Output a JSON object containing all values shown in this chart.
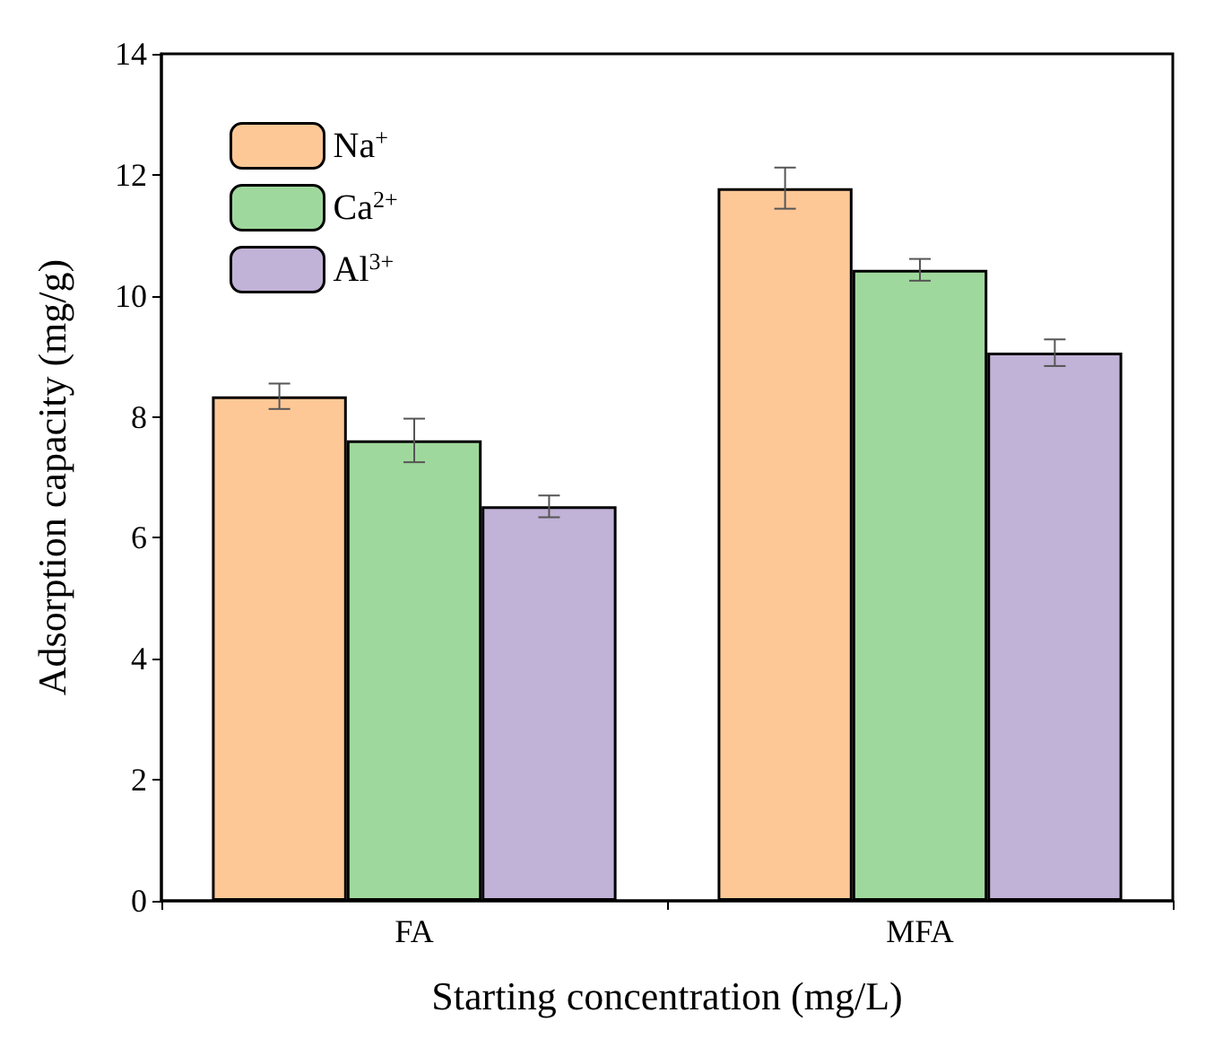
{
  "chart_data": {
    "type": "bar",
    "xlabel": "Starting concentration (mg/L)",
    "ylabel": "Adsorption capacity (mg/g)",
    "categories": [
      "FA",
      "MFA"
    ],
    "series": [
      {
        "name": "Na$^{+}$",
        "color": "#fdc896",
        "values": [
          8.34,
          11.78
        ],
        "errors": [
          0.21,
          0.34
        ]
      },
      {
        "name": "Ca$^{2+}$",
        "color": "#9fd89c",
        "values": [
          7.61,
          10.43
        ],
        "errors": [
          0.36,
          0.18
        ]
      },
      {
        "name": "Al$^{3+}$",
        "color": "#c1b2d7",
        "values": [
          6.52,
          9.06
        ],
        "errors": [
          0.18,
          0.22
        ]
      }
    ],
    "ylim": [
      0,
      14
    ],
    "yticks": [
      0,
      2,
      4,
      6,
      8,
      10,
      12,
      14
    ],
    "grid": false,
    "legend": "top left"
  }
}
